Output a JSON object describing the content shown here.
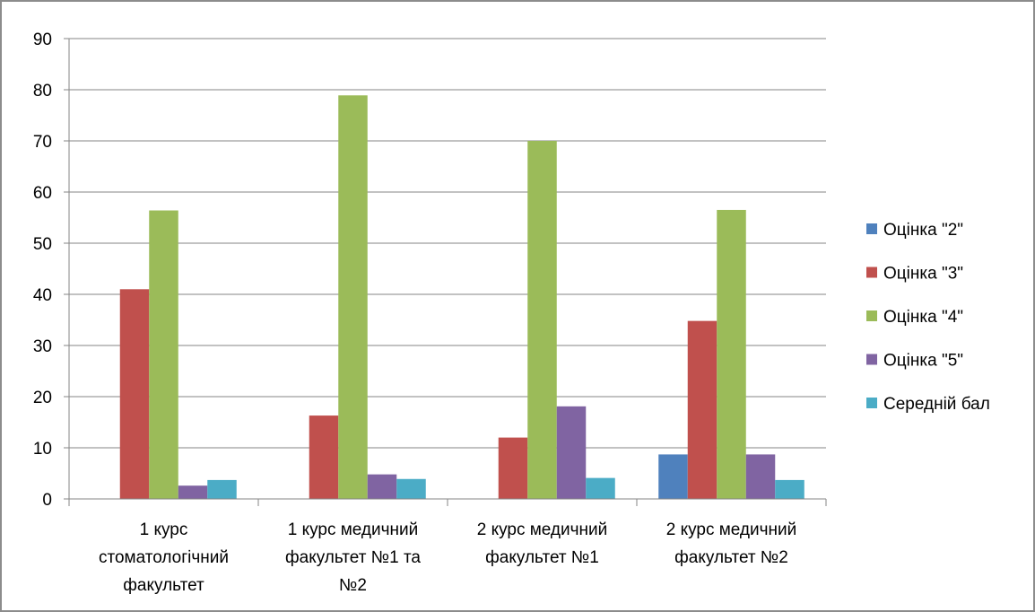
{
  "chart_data": {
    "type": "bar",
    "categories": [
      [
        "1 курс",
        "стоматологічний",
        "факультет"
      ],
      [
        "1 курс медичний",
        "факультет №1 та",
        "№2"
      ],
      [
        "2 курс медичний",
        "факультет №1"
      ],
      [
        "2 курс медичний",
        "факультет №2"
      ]
    ],
    "series": [
      {
        "name": "Оцінка \"2\"",
        "color": "#4F81BD",
        "values": [
          0,
          0,
          0,
          8.7
        ]
      },
      {
        "name": "Оцінка \"3\"",
        "color": "#C0504D",
        "values": [
          41,
          16.3,
          12,
          34.8
        ]
      },
      {
        "name": "Оцінка \"4\"",
        "color": "#9BBB59",
        "values": [
          56.4,
          78.9,
          70,
          56.5
        ]
      },
      {
        "name": "Оцінка \"5\"",
        "color": "#8064A2",
        "values": [
          2.6,
          4.8,
          18.1,
          8.7
        ]
      },
      {
        "name": "Середній бал",
        "color": "#4BACC6",
        "values": [
          3.7,
          3.9,
          4.1,
          3.7
        ]
      }
    ],
    "yticks": [
      "0",
      "10",
      "20",
      "30",
      "40",
      "50",
      "60",
      "70",
      "80",
      "90"
    ],
    "ylim": [
      0,
      90
    ],
    "grid": true,
    "legend_position": "right"
  }
}
